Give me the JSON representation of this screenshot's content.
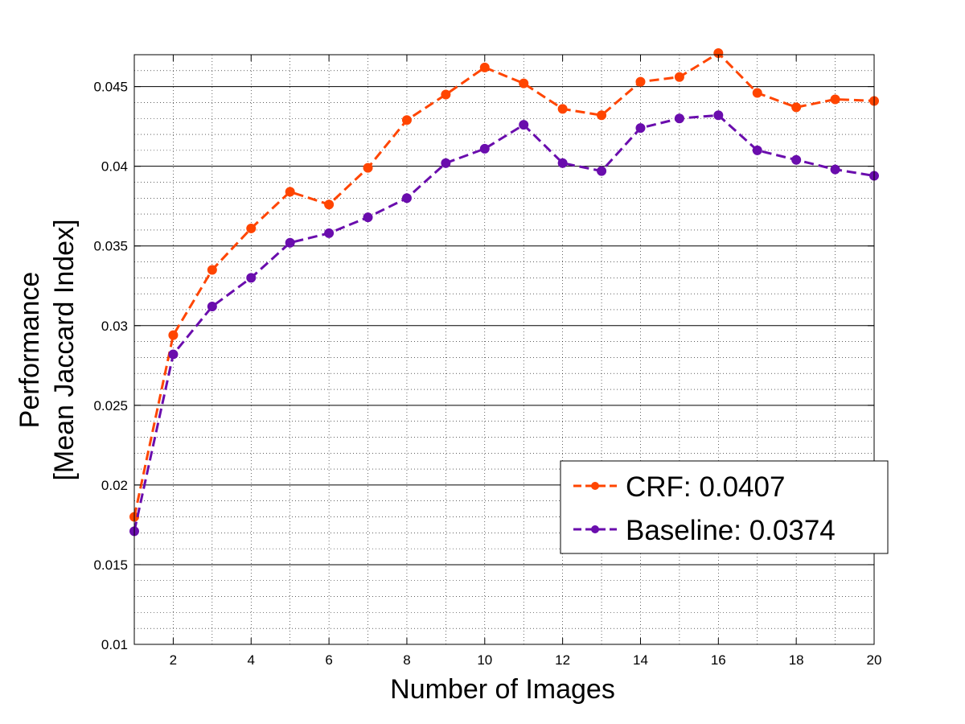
{
  "chart_data": {
    "type": "line",
    "title": "",
    "xlabel": "Number of Images",
    "ylabel_lines": [
      "Performance",
      "[Mean Jaccard Index]"
    ],
    "xlim": [
      1,
      20
    ],
    "ylim": [
      0.01,
      0.047
    ],
    "xticks": [
      2,
      4,
      6,
      8,
      10,
      12,
      14,
      16,
      18,
      20
    ],
    "xtick_labels": [
      "2",
      "4",
      "6",
      "8",
      "10",
      "12",
      "14",
      "16",
      "18",
      "20"
    ],
    "yticks": [
      0.01,
      0.015,
      0.02,
      0.025,
      0.03,
      0.035,
      0.04,
      0.045
    ],
    "ytick_labels": [
      "0.01",
      "0.015",
      "0.02",
      "0.025",
      "0.03",
      "0.035",
      "0.04",
      "0.045"
    ],
    "grid": "major solid, minor dotted",
    "legend_position": "lower-right",
    "x": [
      1,
      2,
      3,
      4,
      5,
      6,
      7,
      8,
      9,
      10,
      11,
      12,
      13,
      14,
      15,
      16,
      17,
      18,
      19,
      20
    ],
    "series": [
      {
        "name": "CRF: 0.0407",
        "color": "#ff4500",
        "values": [
          0.018,
          0.0294,
          0.0335,
          0.0361,
          0.0384,
          0.0376,
          0.0399,
          0.0429,
          0.0445,
          0.0462,
          0.0452,
          0.0436,
          0.0432,
          0.0453,
          0.0456,
          0.0471,
          0.0446,
          0.0437,
          0.0442,
          0.0441
        ]
      },
      {
        "name": "Baseline: 0.0374",
        "color": "#6a0dad",
        "values": [
          0.0171,
          0.0282,
          0.0312,
          0.033,
          0.0352,
          0.0358,
          0.0368,
          0.038,
          0.0402,
          0.0411,
          0.0426,
          0.0402,
          0.0397,
          0.0424,
          0.043,
          0.0432,
          0.041,
          0.0404,
          0.0398,
          0.0394
        ]
      }
    ]
  }
}
